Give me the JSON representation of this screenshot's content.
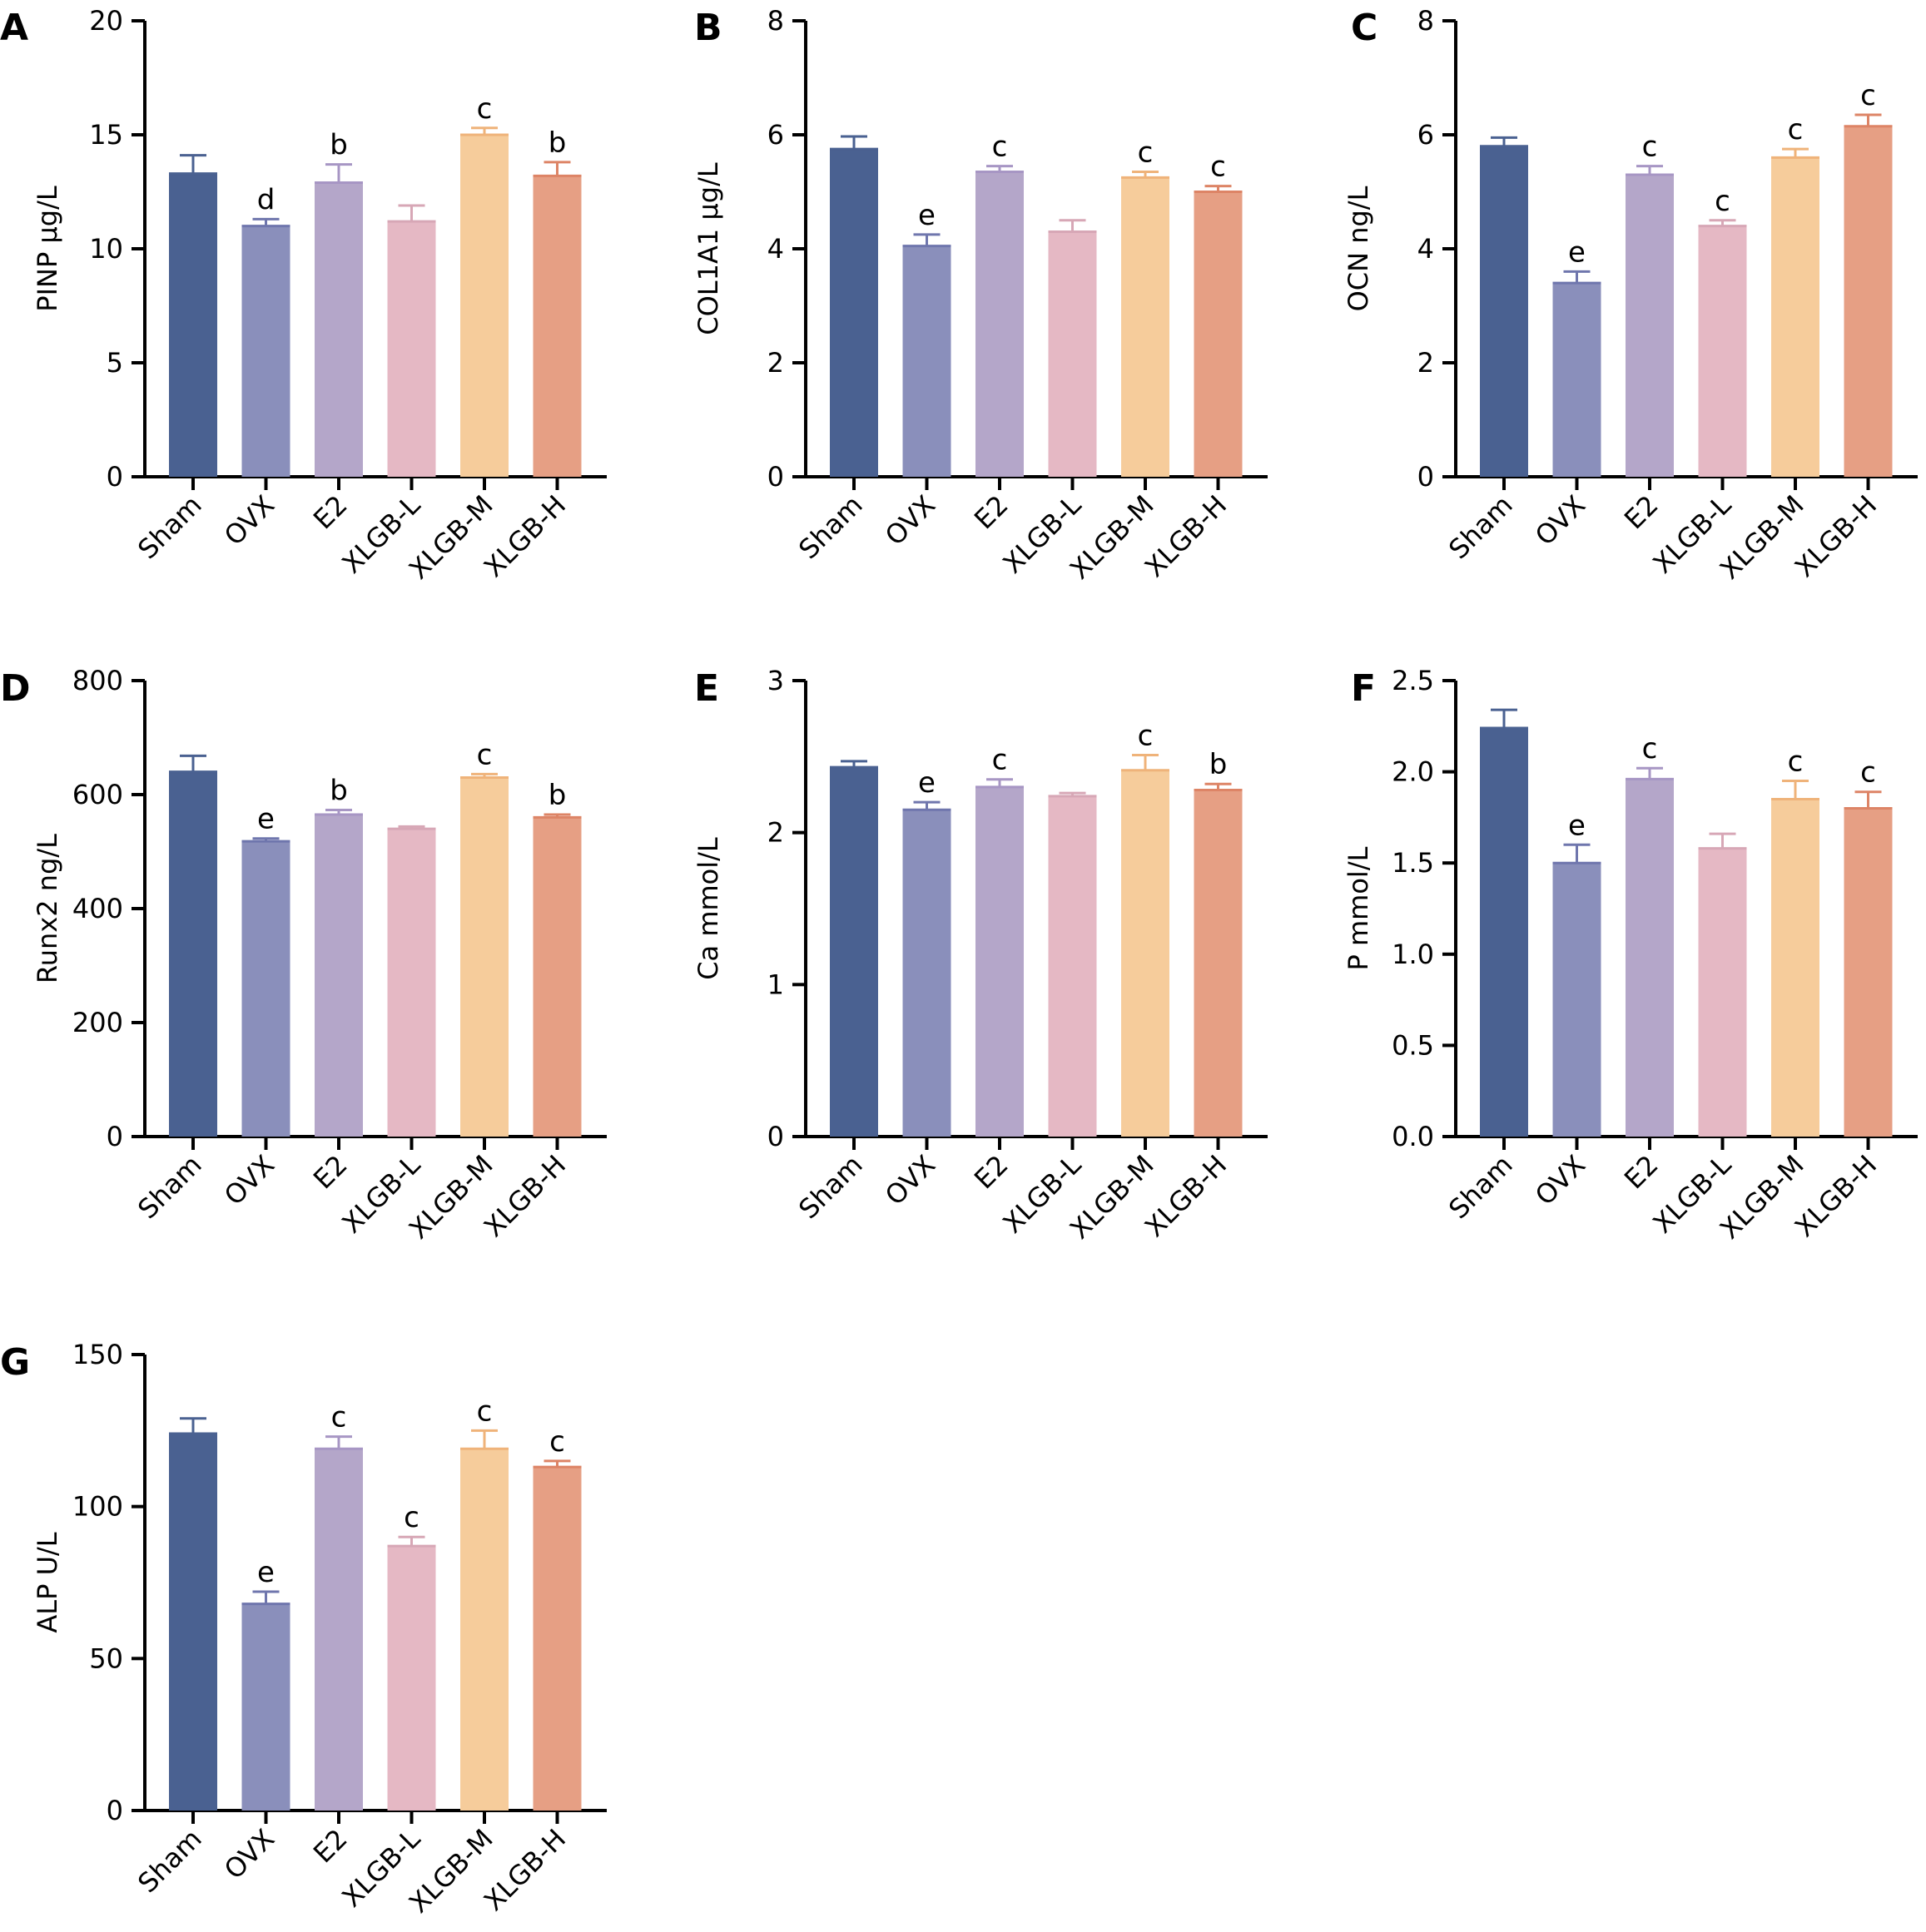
{
  "categories": [
    "Sham",
    "OVX",
    "E2",
    "XLGB-L",
    "XLGB-M",
    "XLGB-H"
  ],
  "colors": {
    "bars": [
      "#4a6191",
      "#8a8fbb",
      "#b4a6c9",
      "#e5b8c4",
      "#f6cc9b",
      "#e69f84"
    ],
    "errors": [
      "#4a6191",
      "#6f76ad",
      "#a796c4",
      "#d7a7b6",
      "#efb37a",
      "#dd8466"
    ],
    "axis": "#000000"
  },
  "chart_data": [
    {
      "id": "A",
      "panel_letter": "A",
      "type": "bar",
      "ylabel": "PINP μg/L",
      "ylim": [
        0,
        20
      ],
      "yticks": [
        "0",
        "5",
        "10",
        "15",
        "20"
      ],
      "categories": [
        "Sham",
        "OVX",
        "E2",
        "XLGB-L",
        "XLGB-M",
        "XLGB-H"
      ],
      "values": [
        13.3,
        11.0,
        12.9,
        11.2,
        15.0,
        13.2
      ],
      "errors": [
        0.8,
        0.3,
        0.8,
        0.7,
        0.3,
        0.6
      ],
      "sig": [
        "",
        "d",
        "b",
        "",
        "c",
        "b"
      ]
    },
    {
      "id": "B",
      "panel_letter": "B",
      "type": "bar",
      "ylabel": "COL1A1 μg/L",
      "ylim": [
        0,
        8
      ],
      "yticks": [
        "0",
        "2",
        "4",
        "6",
        "8"
      ],
      "categories": [
        "Sham",
        "OVX",
        "E2",
        "XLGB-L",
        "XLGB-M",
        "XLGB-H"
      ],
      "values": [
        5.75,
        4.05,
        5.35,
        4.3,
        5.25,
        5.0
      ],
      "errors": [
        0.22,
        0.2,
        0.1,
        0.2,
        0.1,
        0.1
      ],
      "sig": [
        "",
        "e",
        "c",
        "",
        "c",
        "c"
      ]
    },
    {
      "id": "C",
      "panel_letter": "C",
      "type": "bar",
      "ylabel": "OCN ng/L",
      "ylim": [
        0,
        8
      ],
      "yticks": [
        "0",
        "2",
        "4",
        "6",
        "8"
      ],
      "categories": [
        "Sham",
        "OVX",
        "E2",
        "XLGB-L",
        "XLGB-M",
        "XLGB-H"
      ],
      "values": [
        5.8,
        3.4,
        5.3,
        4.4,
        5.6,
        6.15
      ],
      "errors": [
        0.15,
        0.2,
        0.15,
        0.1,
        0.15,
        0.2
      ],
      "sig": [
        "",
        "e",
        "c",
        "c",
        "c",
        "c"
      ]
    },
    {
      "id": "D",
      "panel_letter": "D",
      "type": "bar",
      "ylabel": "Runx2 ng/L",
      "ylim": [
        0,
        800
      ],
      "yticks": [
        "0",
        "200",
        "400",
        "600",
        "800"
      ],
      "categories": [
        "Sham",
        "OVX",
        "E2",
        "XLGB-L",
        "XLGB-M",
        "XLGB-H"
      ],
      "values": [
        640,
        518,
        565,
        540,
        630,
        560
      ],
      "errors": [
        28,
        5,
        8,
        4,
        6,
        5
      ],
      "sig": [
        "",
        "e",
        "b",
        "",
        "c",
        "b"
      ]
    },
    {
      "id": "E",
      "panel_letter": "E",
      "type": "bar",
      "ylabel": "Ca mmol/L",
      "ylim": [
        0,
        3
      ],
      "yticks": [
        "0",
        "1",
        "2",
        "3"
      ],
      "categories": [
        "Sham",
        "OVX",
        "E2",
        "XLGB-L",
        "XLGB-M",
        "XLGB-H"
      ],
      "values": [
        2.43,
        2.15,
        2.3,
        2.24,
        2.41,
        2.28
      ],
      "errors": [
        0.04,
        0.05,
        0.05,
        0.02,
        0.1,
        0.04
      ],
      "sig": [
        "",
        "e",
        "c",
        "",
        "c",
        "b"
      ]
    },
    {
      "id": "F",
      "panel_letter": "F",
      "type": "bar",
      "ylabel": "P mmol/L",
      "ylim": [
        0,
        2.5
      ],
      "yticks": [
        "0.0",
        "0.5",
        "1.0",
        "1.5",
        "2.0",
        "2.5"
      ],
      "categories": [
        "Sham",
        "OVX",
        "E2",
        "XLGB-L",
        "XLGB-M",
        "XLGB-H"
      ],
      "values": [
        2.24,
        1.5,
        1.96,
        1.58,
        1.85,
        1.8
      ],
      "errors": [
        0.1,
        0.1,
        0.06,
        0.08,
        0.1,
        0.09
      ],
      "sig": [
        "",
        "e",
        "c",
        "",
        "c",
        "c"
      ]
    },
    {
      "id": "G",
      "panel_letter": "G",
      "type": "bar",
      "ylabel": "ALP U/L",
      "ylim": [
        0,
        150
      ],
      "yticks": [
        "0",
        "50",
        "100",
        "150"
      ],
      "categories": [
        "Sham",
        "OVX",
        "E2",
        "XLGB-L",
        "XLGB-M",
        "XLGB-H"
      ],
      "values": [
        124,
        68,
        119,
        87,
        119,
        113
      ],
      "errors": [
        5,
        4,
        4,
        3,
        6,
        2
      ],
      "sig": [
        "",
        "e",
        "c",
        "c",
        "c",
        "c"
      ]
    }
  ]
}
